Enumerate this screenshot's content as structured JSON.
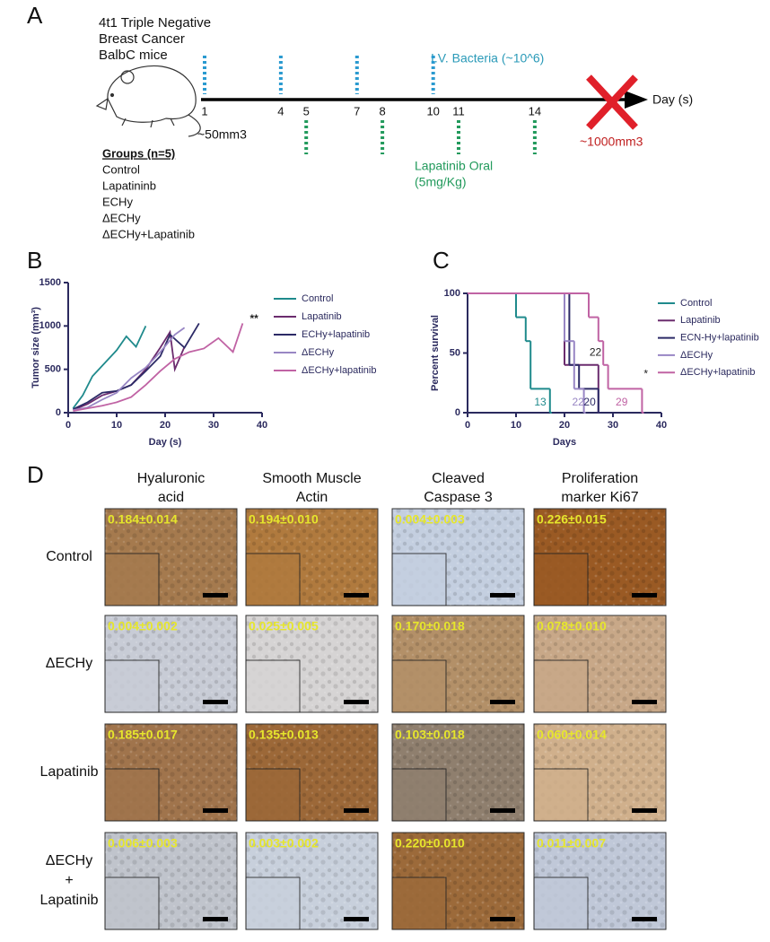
{
  "panel_a": {
    "label": "A",
    "model_lines": [
      "4t1 Triple Negative",
      "Breast Cancer",
      "BalbC mice"
    ],
    "timeline": {
      "days": [
        1,
        4,
        5,
        7,
        8,
        10,
        11,
        14
      ],
      "bacteria_days": [
        1,
        4,
        7,
        10
      ],
      "lapatinib_days": [
        5,
        8,
        11,
        14
      ],
      "axis_label": "Day (s)"
    },
    "bacteria_label": "I.V. Bacteria (~10^6)",
    "lapatinib_label": [
      "Lapatinib Oral",
      "(5mg/Kg)"
    ],
    "start_size": "~50mm3",
    "end_size": "~1000mm3",
    "groups_title": "Groups (n=5)",
    "groups": [
      "Control",
      "Lapatininb",
      "ECHy",
      "ΔECHy",
      "ΔECHy+Lapatinib"
    ]
  },
  "chart_data": [
    {
      "type": "line",
      "panel": "B",
      "x_label": "Day (s)",
      "y_label": "Tumor size (mm³)",
      "xlim": [
        0,
        40
      ],
      "xticks": [
        0,
        10,
        20,
        30,
        40
      ],
      "ylim": [
        0,
        1500
      ],
      "yticks": [
        0,
        500,
        1000,
        1500
      ],
      "annotation": "**",
      "series": [
        {
          "name": "Control",
          "color": "#1f8a8c",
          "x": [
            1,
            3,
            5,
            8,
            10,
            12,
            14,
            16
          ],
          "values": [
            50,
            200,
            420,
            600,
            720,
            880,
            760,
            1000
          ]
        },
        {
          "name": "Lapatinib",
          "color": "#6b2c6e",
          "x": [
            1,
            4,
            7,
            10,
            13,
            16,
            19,
            21,
            22,
            24
          ],
          "values": [
            30,
            100,
            200,
            250,
            320,
            500,
            750,
            930,
            500,
            760
          ]
        },
        {
          "name": "ECHy+lapatinib",
          "color": "#2c2a66",
          "x": [
            1,
            4,
            7,
            10,
            13,
            16,
            19,
            21,
            24,
            27
          ],
          "values": [
            40,
            120,
            230,
            250,
            320,
            480,
            650,
            900,
            750,
            1030
          ]
        },
        {
          "name": "ΔECHy",
          "color": "#9886c4",
          "x": [
            1,
            4,
            7,
            10,
            13,
            16,
            19,
            22,
            24
          ],
          "values": [
            30,
            60,
            150,
            230,
            400,
            520,
            700,
            900,
            980
          ]
        },
        {
          "name": "ΔECHy+lapatinib",
          "color": "#c063a4",
          "x": [
            1,
            4,
            7,
            10,
            13,
            16,
            19,
            22,
            25,
            28,
            31,
            34,
            36
          ],
          "values": [
            20,
            50,
            80,
            120,
            180,
            320,
            480,
            620,
            700,
            740,
            860,
            700,
            1030
          ]
        }
      ]
    },
    {
      "type": "step",
      "panel": "C",
      "x_label": "Days",
      "y_label": "Percent survival",
      "xlim": [
        0,
        40
      ],
      "xticks": [
        0,
        10,
        20,
        30,
        40
      ],
      "ylim": [
        0,
        100
      ],
      "yticks": [
        0,
        50,
        100
      ],
      "annotations": [
        "13",
        "22",
        "20",
        "22",
        "29",
        "*"
      ],
      "series": [
        {
          "name": "Control",
          "color": "#1f8a8c",
          "x": [
            0,
            10,
            12,
            13,
            17
          ],
          "values": [
            100,
            80,
            60,
            20,
            0
          ]
        },
        {
          "name": "Lapatinib",
          "color": "#6b2c6e",
          "x": [
            0,
            20,
            27
          ],
          "values": [
            100,
            40,
            0
          ]
        },
        {
          "name": "ECN-Hy+lapatinib",
          "color": "#2c2a66",
          "x": [
            0,
            21,
            23,
            27
          ],
          "values": [
            100,
            40,
            20,
            0
          ]
        },
        {
          "name": "ΔECHy",
          "color": "#9886c4",
          "x": [
            0,
            20,
            22,
            24
          ],
          "values": [
            100,
            60,
            20,
            0
          ]
        },
        {
          "name": "ΔECHy+lapatinib",
          "color": "#c063a4",
          "x": [
            0,
            25,
            27,
            28,
            29,
            36
          ],
          "values": [
            100,
            80,
            60,
            40,
            20,
            0
          ]
        }
      ]
    }
  ],
  "panel_d": {
    "label": "D",
    "columns": [
      [
        "Hyaluronic",
        "acid"
      ],
      [
        "Smooth Muscle",
        "Actin"
      ],
      [
        "Cleaved",
        "Caspase 3"
      ],
      [
        "Proliferation",
        "marker Ki67"
      ]
    ],
    "rows": [
      [
        "Control"
      ],
      [
        "ΔECHy"
      ],
      [
        "Lapatinib"
      ],
      [
        "ΔECHy",
        "+",
        "Lapatinib"
      ]
    ],
    "values": [
      [
        "0.184±0.014",
        "0.194±0.010",
        "0.004±0.003",
        "0.226±0.015"
      ],
      [
        "0.004±0.002",
        "0.025±0.005",
        "0.170±0.018",
        "0.078±0.010"
      ],
      [
        "0.185±0.017",
        "0.135±0.013",
        "0.103±0.018",
        "0.060±0.014"
      ],
      [
        "0.006±0.003",
        "0.003±0.002",
        "0.220±0.010",
        "0.011±0.007"
      ]
    ]
  }
}
